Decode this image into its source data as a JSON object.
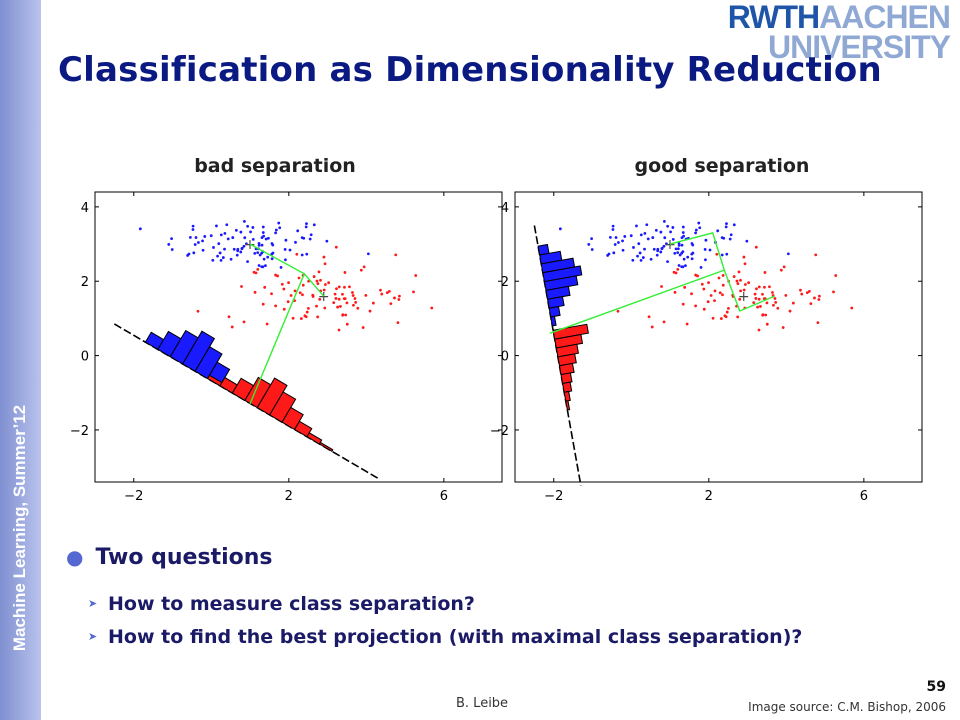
{
  "sidebar": {
    "course": "Machine Learning, Summer’12"
  },
  "slide": {
    "title": "Classification as Dimensionality Reduction"
  },
  "logo": {
    "line1_dark": "RWTH",
    "line1_light": "AACHEN",
    "line2": "UNIVERSITY"
  },
  "colors": {
    "title": "#0a1a82",
    "sidebar": "#8090d4",
    "class_a": "#1a1aff",
    "class_b": "#ff1a1a",
    "projection_line": "#33ee33"
  },
  "icons": {
    "bullet": "bullet-dot-icon",
    "sub_bullet": "arrow-bullet-icon"
  },
  "bullets": {
    "main": "Two questions",
    "sub": [
      "How to measure class separation?",
      "How to find the best projection (with maximal class separation)?"
    ]
  },
  "footer": {
    "author": "B. Leibe",
    "page_number": "59",
    "image_source": "Image source: C.M. Bishop, 2006"
  },
  "chart_data": [
    {
      "type": "scatter",
      "title": "bad separation",
      "xlim": [
        -3,
        7.5
      ],
      "ylim": [
        -3.4,
        4.4
      ],
      "xticks": [
        -2,
        2,
        6
      ],
      "yticks": [
        -2,
        0,
        2,
        4
      ],
      "xtick_labels": [
        "−2",
        "2",
        "6"
      ],
      "ytick_labels": [
        "−2",
        "0",
        "2",
        "4"
      ],
      "series": [
        {
          "color": "#1a1aff",
          "mean": [
            1.0,
            3.0
          ],
          "spread": [
            2.2,
            1.2
          ],
          "n": 100
        },
        {
          "color": "#ff1a1a",
          "mean": [
            2.9,
            1.6
          ],
          "spread": [
            2.3,
            1.5
          ],
          "n": 100
        }
      ],
      "projection_axis": {
        "start": [
          -2.5,
          0.85
        ],
        "end": [
          4.3,
          -3.3
        ]
      },
      "mean_connector": [
        [
          1.0,
          3.0
        ],
        [
          2.4,
          2.2
        ],
        [
          2.9,
          1.6
        ],
        [
          2.4,
          2.2
        ],
        [
          1.0,
          -1.3
        ]
      ],
      "histograms": [
        {
          "color": "#1a1aff",
          "t0": 1.2,
          "width": 0.48,
          "counts": [
            0.3,
            0.55,
            0.8,
            1.0,
            0.75,
            0.5,
            0.25,
            0.1
          ]
        },
        {
          "color": "#ff1a1a",
          "t0": 3.6,
          "width": 0.48,
          "counts": [
            0.1,
            0.25,
            0.45,
            0.7,
            0.9,
            0.7,
            0.45,
            0.25,
            0.12,
            0.05
          ]
        }
      ]
    },
    {
      "type": "scatter",
      "title": "good separation",
      "xlim": [
        -3,
        7.5
      ],
      "ylim": [
        -3.4,
        4.4
      ],
      "xticks": [
        -2,
        2,
        6
      ],
      "yticks": [
        -2,
        0,
        2,
        4
      ],
      "xtick_labels": [
        "−2",
        "2",
        "6"
      ],
      "ytick_labels": [
        "−2",
        "0",
        "2",
        "4"
      ],
      "series": [
        {
          "color": "#1a1aff",
          "mean": [
            1.0,
            3.0
          ],
          "spread": [
            2.2,
            1.2
          ],
          "n": 100
        },
        {
          "color": "#ff1a1a",
          "mean": [
            2.9,
            1.6
          ],
          "spread": [
            2.3,
            1.5
          ],
          "n": 100
        }
      ],
      "projection_axis": {
        "start": [
          -2.5,
          3.5
        ],
        "end": [
          -1.3,
          -3.5
        ]
      },
      "mean_connector": [
        [
          1.0,
          3.0
        ],
        [
          2.1,
          3.3
        ],
        [
          2.4,
          2.3
        ],
        [
          2.8,
          1.2
        ],
        [
          3.7,
          1.6
        ],
        [
          2.8,
          1.2
        ],
        [
          2.4,
          2.3
        ],
        [
          -2.1,
          0.6
        ]
      ],
      "histograms": [
        {
          "color": "#1a1aff",
          "t0": 0.7,
          "width": 0.3,
          "counts": [
            0.25,
            0.55,
            0.85,
            1.0,
            0.85,
            0.6,
            0.4,
            0.25,
            0.1
          ]
        },
        {
          "color": "#ff1a1a",
          "t0": 3.55,
          "width": 0.3,
          "counts": [
            0.9,
            0.7,
            0.55,
            0.45,
            0.35,
            0.25,
            0.2,
            0.12,
            0.06
          ]
        }
      ]
    }
  ]
}
